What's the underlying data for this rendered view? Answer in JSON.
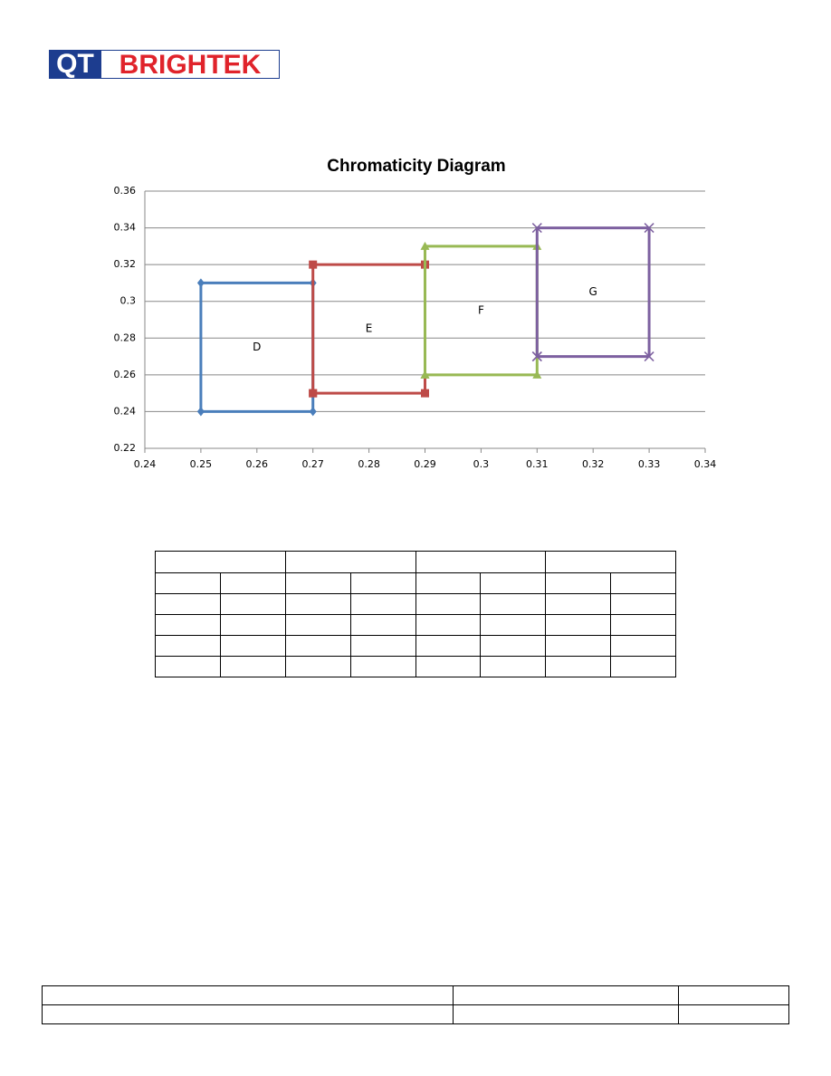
{
  "logo": {
    "left": "QT",
    "right": "BRIGHTEK"
  },
  "chart_data": {
    "type": "scatter",
    "title": "Chromaticity Diagram",
    "xlim": [
      0.24,
      0.34
    ],
    "xticks": [
      0.24,
      0.25,
      0.26,
      0.27,
      0.28,
      0.29,
      0.3,
      0.31,
      0.32,
      0.33,
      0.34
    ],
    "ylim": [
      0.22,
      0.36
    ],
    "yticks": [
      0.22,
      0.24,
      0.26,
      0.28,
      0.3,
      0.32,
      0.34,
      0.36
    ],
    "grid": true,
    "series": [
      {
        "name": "D",
        "color": "#4a7ebb",
        "marker": "diamond",
        "x": [
          0.25,
          0.25,
          0.27,
          0.27,
          0.25
        ],
        "values": [
          0.24,
          0.31,
          0.31,
          0.24,
          0.24
        ]
      },
      {
        "name": "E",
        "color": "#be4b48",
        "marker": "square",
        "x": [
          0.27,
          0.27,
          0.29,
          0.29,
          0.27
        ],
        "values": [
          0.25,
          0.32,
          0.32,
          0.25,
          0.25
        ]
      },
      {
        "name": "F",
        "color": "#98b954",
        "marker": "triangle",
        "x": [
          0.29,
          0.29,
          0.31,
          0.31,
          0.29
        ],
        "values": [
          0.26,
          0.33,
          0.33,
          0.26,
          0.26
        ]
      },
      {
        "name": "G",
        "color": "#7d60a0",
        "marker": "x",
        "x": [
          0.31,
          0.31,
          0.33,
          0.33,
          0.31
        ],
        "values": [
          0.27,
          0.34,
          0.34,
          0.27,
          0.27
        ]
      }
    ]
  }
}
